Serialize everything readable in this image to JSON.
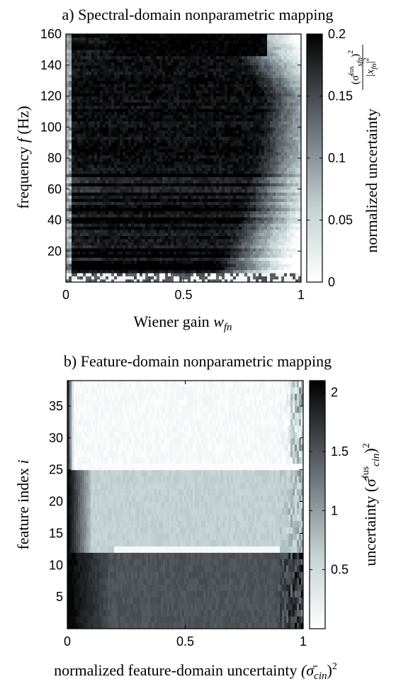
{
  "chart_data": [
    {
      "type": "heatmap",
      "panel_label": "a) Spectral-domain nonparametric mapping",
      "xlabel_text": "Wiener gain ",
      "xlabel_sym": "w",
      "xlabel_sub": "fn",
      "ylabel_text": "frequency ",
      "ylabel_sym": "f",
      "ylabel_unit": " (Hz)",
      "xlim": [
        0,
        1
      ],
      "ylim": [
        0,
        160
      ],
      "x_ticks": [
        0,
        0.5,
        1
      ],
      "x_tick_labels": [
        "0",
        "0.5",
        "1"
      ],
      "y_ticks": [
        20,
        40,
        60,
        80,
        100,
        120,
        140,
        160
      ],
      "y_tick_labels": [
        "20",
        "40",
        "60",
        "80",
        "100",
        "120",
        "140",
        "160"
      ],
      "colorbar": {
        "range": [
          0,
          0.2
        ],
        "ticks": [
          0,
          0.05,
          0.1,
          0.15,
          0.2
        ],
        "tick_labels": [
          "0",
          "0.05",
          "0.1",
          "0.15",
          "0.2"
        ],
        "label_text": "normalized uncertainty ",
        "frac_num_main": "(σ̂",
        "frac_num_sup_fus": "fus",
        "frac_num_sub": "sfn",
        "frac_num_close": ")",
        "frac_num_exp": "2",
        "frac_den_main": "|x",
        "frac_den_sub": "fn",
        "frac_den_close": "|",
        "frac_den_exp": "2"
      },
      "colors": {
        "low": "#ffffff",
        "mid": "#8f989c",
        "high": "#000000"
      }
    },
    {
      "type": "heatmap",
      "panel_label": "b) Feature-domain nonparametric mapping",
      "xlabel_text": "normalized feature-domain uncertainty ",
      "xlabel_sym": "(σ̄",
      "xlabel_sub": "cin",
      "xlabel_close": ")",
      "xlabel_exp": "2",
      "ylabel_text": "feature index ",
      "ylabel_sym": "i",
      "xlim": [
        0,
        1
      ],
      "ylim": [
        0,
        39
      ],
      "x_ticks": [
        0,
        0.5,
        1
      ],
      "x_tick_labels": [
        "0",
        "0.5",
        "1"
      ],
      "y_ticks": [
        5,
        10,
        15,
        20,
        25,
        30,
        35
      ],
      "y_tick_labels": [
        "5",
        "10",
        "15",
        "20",
        "25",
        "30",
        "35"
      ],
      "colorbar": {
        "range": [
          0,
          2.1
        ],
        "ticks": [
          0.5,
          1,
          1.5,
          2
        ],
        "tick_labels": [
          "0.5",
          "1",
          "1.5",
          "2"
        ],
        "label_text": "uncertainty ",
        "label_sym": "(σ̂",
        "label_sup_fus": "fus",
        "label_sub": "cin",
        "label_close": ")",
        "label_exp": "2"
      },
      "band_boundaries": [
        12.5,
        25.5
      ],
      "colors": {
        "low": "#ffffff",
        "mid": "#8f989c",
        "high": "#000000"
      }
    }
  ]
}
